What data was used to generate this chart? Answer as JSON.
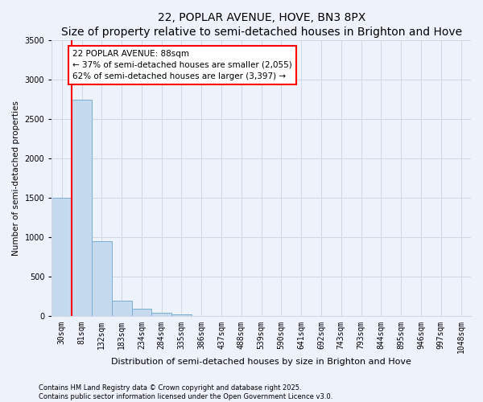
{
  "title1": "22, POPLAR AVENUE, HOVE, BN3 8PX",
  "title2": "Size of property relative to semi-detached houses in Brighton and Hove",
  "xlabel": "Distribution of semi-detached houses by size in Brighton and Hove",
  "ylabel": "Number of semi-detached properties",
  "bar_labels": [
    "30sqm",
    "81sqm",
    "132sqm",
    "183sqm",
    "234sqm",
    "284sqm",
    "335sqm",
    "386sqm",
    "437sqm",
    "488sqm",
    "539sqm",
    "590sqm",
    "641sqm",
    "692sqm",
    "743sqm",
    "793sqm",
    "844sqm",
    "895sqm",
    "946sqm",
    "997sqm",
    "1048sqm"
  ],
  "bar_values": [
    1500,
    2750,
    950,
    200,
    100,
    50,
    25,
    0,
    0,
    0,
    0,
    0,
    0,
    0,
    0,
    0,
    0,
    0,
    0,
    0,
    0
  ],
  "bar_color": "#c5d9ef",
  "bar_edge_color": "#7aaed4",
  "annotation_text": "22 POPLAR AVENUE: 88sqm\n← 37% of semi-detached houses are smaller (2,055)\n62% of semi-detached houses are larger (3,397) →",
  "ylim": [
    0,
    3500
  ],
  "yticks": [
    0,
    500,
    1000,
    1500,
    2000,
    2500,
    3000,
    3500
  ],
  "footer1": "Contains HM Land Registry data © Crown copyright and database right 2025.",
  "footer2": "Contains public sector information licensed under the Open Government Licence v3.0.",
  "bg_color": "#eef2fb",
  "grid_color": "#d0d8e8",
  "red_line_x": 0.5,
  "title1_fontsize": 10,
  "title2_fontsize": 8.5,
  "xlabel_fontsize": 8,
  "ylabel_fontsize": 7.5,
  "tick_fontsize": 7,
  "annotation_fontsize": 7.5,
  "footer_fontsize": 6
}
